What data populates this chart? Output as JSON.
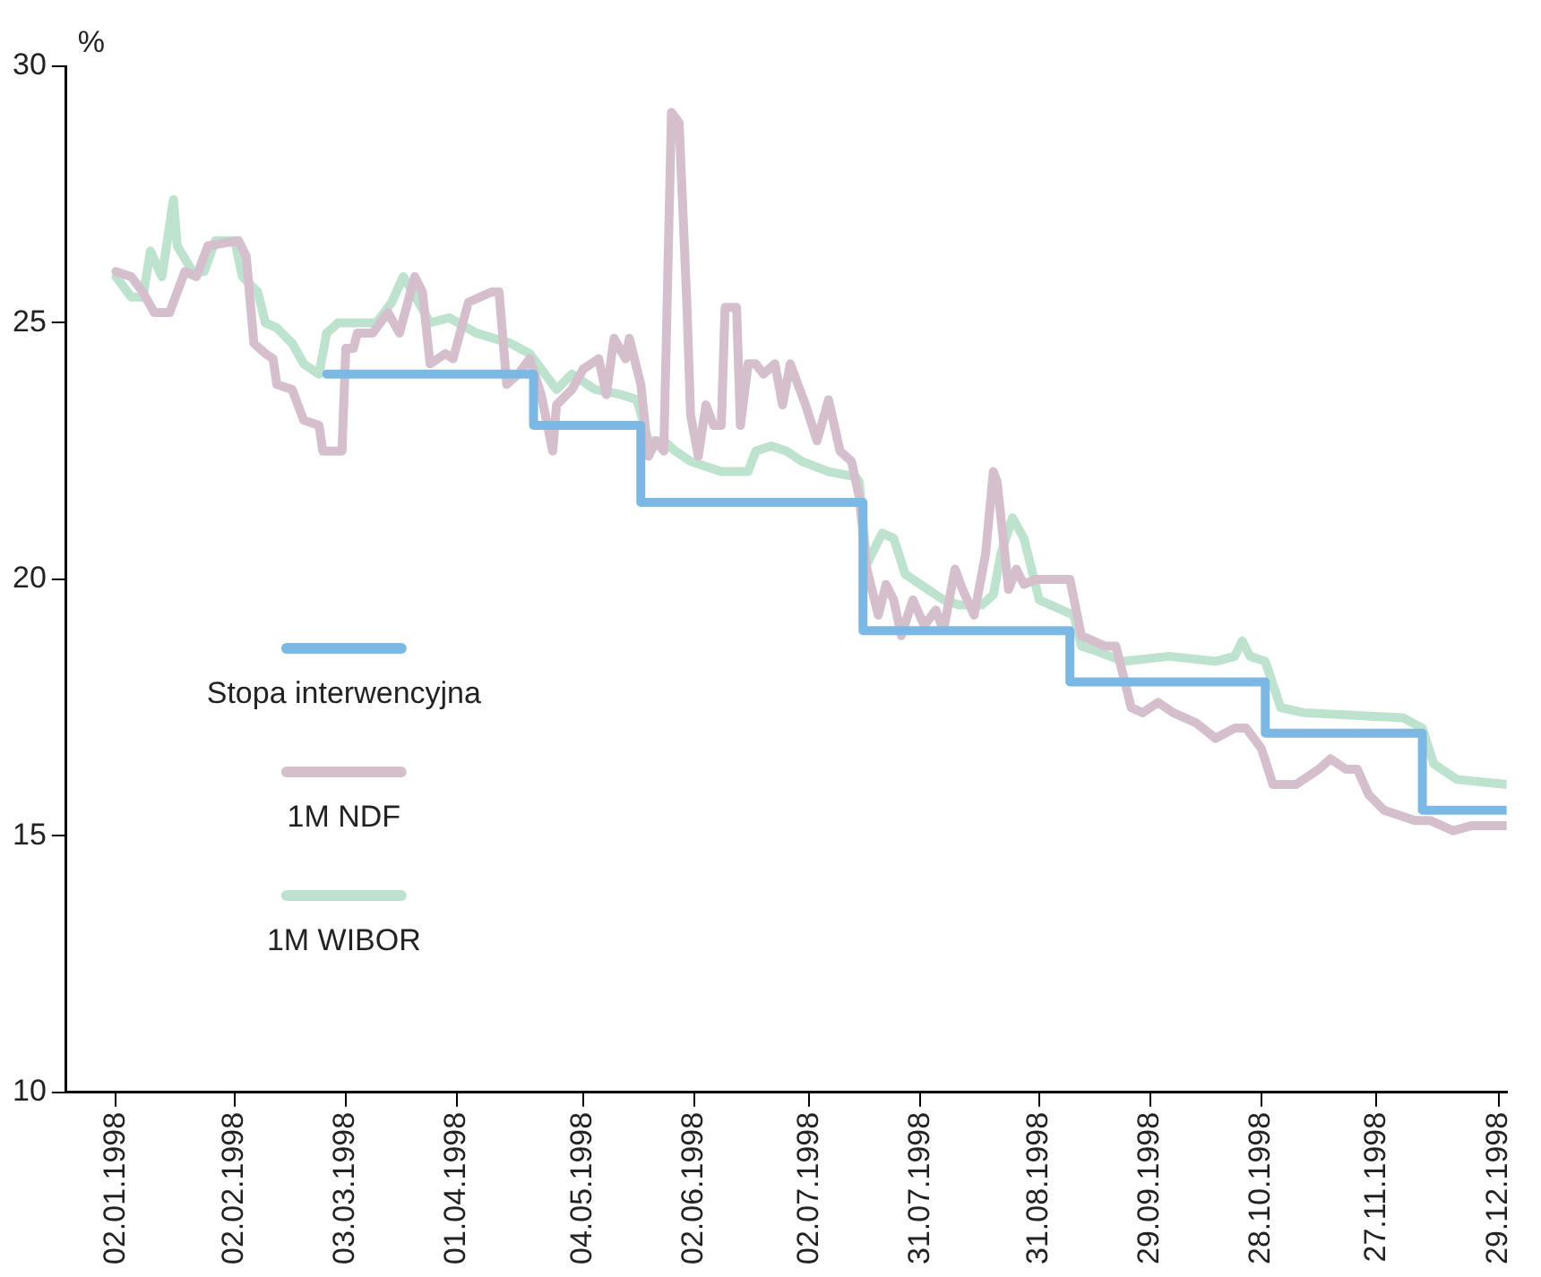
{
  "chart_data": {
    "type": "line",
    "ylabel": "%",
    "xlim": [
      "1997-12-20",
      "1998-12-31"
    ],
    "ylim": [
      10,
      30
    ],
    "yticks": [
      10,
      15,
      20,
      25,
      30
    ],
    "xticks": [
      {
        "value": "1998-01-02",
        "label": "02.01.1998"
      },
      {
        "value": "1998-02-02",
        "label": "02.02.1998"
      },
      {
        "value": "1998-03-03",
        "label": "03.03.1998"
      },
      {
        "value": "1998-04-01",
        "label": "01.04.1998"
      },
      {
        "value": "1998-05-04",
        "label": "04.05.1998"
      },
      {
        "value": "1998-06-02",
        "label": "02.06.1998"
      },
      {
        "value": "1998-07-02",
        "label": "02.07.1998"
      },
      {
        "value": "1998-07-31",
        "label": "31.07.1998"
      },
      {
        "value": "1998-08-31",
        "label": "31.08.1998"
      },
      {
        "value": "1998-09-29",
        "label": "29.09.1998"
      },
      {
        "value": "1998-10-28",
        "label": "28.10.1998"
      },
      {
        "value": "1998-11-27",
        "label": "27.11.1998"
      },
      {
        "value": "1998-12-29",
        "label": "29.12.1998"
      }
    ],
    "grid": false,
    "legend": "left",
    "marker": "none",
    "line_style": "solid",
    "series": [
      {
        "name": "Stopa interwencyjna",
        "type": "step",
        "color": "#7cb8e4",
        "x": [
          "1998-02-26",
          "1998-04-21",
          "1998-05-19",
          "1998-07-16",
          "1998-09-08",
          "1998-10-29",
          "1998-12-09",
          "1998-12-31"
        ],
        "values": [
          24,
          23,
          21.5,
          19,
          18,
          17,
          15.5,
          15.5
        ]
      },
      {
        "name": "1M NDF",
        "color": "#d5bfcc",
        "x": [
          "1998-01-02",
          "1998-01-06",
          "1998-01-09",
          "1998-01-12",
          "1998-01-16",
          "1998-01-20",
          "1998-01-23",
          "1998-01-26",
          "1998-02-03",
          "1998-02-05",
          "1998-02-07",
          "1998-02-10",
          "1998-02-12",
          "1998-02-13",
          "1998-02-17",
          "1998-02-20",
          "1998-02-24",
          "1998-02-25",
          "1998-03-02",
          "1998-03-03",
          "1998-03-05",
          "1998-03-06",
          "1998-03-10",
          "1998-03-14",
          "1998-03-17",
          "1998-03-21",
          "1998-03-23",
          "1998-03-25",
          "1998-03-29",
          "1998-03-31",
          "1998-04-04",
          "1998-04-10",
          "1998-04-12",
          "1998-04-14",
          "1998-04-17",
          "1998-04-20",
          "1998-04-23",
          "1998-04-26",
          "1998-04-27",
          "1998-05-01",
          "1998-05-04",
          "1998-05-08",
          "1998-05-10",
          "1998-05-12",
          "1998-05-15",
          "1998-05-16",
          "1998-05-19",
          "1998-05-21",
          "1998-05-23",
          "1998-05-25",
          "1998-05-27",
          "1998-05-29",
          "1998-05-31",
          "1998-06-01",
          "1998-06-03",
          "1998-06-05",
          "1998-06-07",
          "1998-06-09",
          "1998-06-10",
          "1998-06-13",
          "1998-06-14",
          "1998-06-16",
          "1998-06-18",
          "1998-06-20",
          "1998-06-23",
          "1998-06-25",
          "1998-06-27",
          "1998-07-01",
          "1998-07-04",
          "1998-07-07",
          "1998-07-10",
          "1998-07-13",
          "1998-07-15",
          "1998-07-17",
          "1998-07-20",
          "1998-07-22",
          "1998-07-24",
          "1998-07-26",
          "1998-07-29",
          "1998-08-01",
          "1998-08-04",
          "1998-08-06",
          "1998-08-09",
          "1998-08-11",
          "1998-08-14",
          "1998-08-17",
          "1998-08-19",
          "1998-08-20",
          "1998-08-23",
          "1998-08-25",
          "1998-08-27",
          "1998-08-30",
          "1998-09-08",
          "1998-09-11",
          "1998-09-14",
          "1998-09-17",
          "1998-09-20",
          "1998-09-24",
          "1998-09-27",
          "1998-10-01",
          "1998-10-05",
          "1998-10-11",
          "1998-10-16",
          "1998-10-21",
          "1998-10-24",
          "1998-10-28",
          "1998-10-31",
          "1998-11-06",
          "1998-11-12",
          "1998-11-15",
          "1998-11-19",
          "1998-11-22",
          "1998-11-25",
          "1998-11-29",
          "1998-12-07",
          "1998-12-11",
          "1998-12-17",
          "1998-12-22",
          "1998-12-31"
        ],
        "values": [
          26.0,
          25.9,
          25.6,
          25.2,
          25.2,
          26.0,
          25.9,
          26.5,
          26.6,
          26.3,
          24.6,
          24.4,
          24.3,
          23.8,
          23.7,
          23.1,
          23.0,
          22.5,
          22.5,
          24.5,
          24.5,
          24.8,
          24.8,
          25.2,
          24.8,
          25.9,
          25.6,
          24.2,
          24.4,
          24.3,
          25.4,
          25.6,
          25.6,
          23.8,
          24.0,
          24.3,
          23.6,
          22.5,
          23.4,
          23.7,
          24.1,
          24.3,
          23.6,
          24.7,
          24.3,
          24.7,
          23.8,
          22.4,
          22.7,
          22.5,
          29.1,
          28.9,
          25.4,
          23.2,
          22.4,
          23.4,
          23.0,
          23.0,
          25.3,
          25.3,
          23.0,
          24.2,
          24.2,
          24.0,
          24.2,
          23.4,
          24.2,
          23.4,
          22.7,
          23.5,
          22.5,
          22.3,
          21.6,
          20.2,
          19.3,
          19.9,
          19.6,
          18.9,
          19.6,
          19.1,
          19.4,
          19.0,
          20.2,
          19.8,
          19.3,
          20.5,
          22.1,
          21.9,
          19.8,
          20.2,
          19.9,
          20.0,
          20.0,
          18.9,
          18.8,
          18.7,
          18.7,
          17.5,
          17.4,
          17.6,
          17.4,
          17.2,
          16.9,
          17.1,
          17.1,
          16.7,
          16.0,
          16.0,
          16.3,
          16.5,
          16.3,
          16.3,
          15.8,
          15.5,
          15.3,
          15.3,
          15.1,
          15.2,
          15.2
        ]
      },
      {
        "name": "1M WIBOR",
        "color": "#bde3cf",
        "x": [
          "1998-01-02",
          "1998-01-06",
          "1998-01-09",
          "1998-01-11",
          "1998-01-14",
          "1998-01-17",
          "1998-01-18",
          "1998-01-22",
          "1998-01-25",
          "1998-01-28",
          "1998-02-02",
          "1998-02-04",
          "1998-02-08",
          "1998-02-10",
          "1998-02-13",
          "1998-02-17",
          "1998-02-20",
          "1998-02-24",
          "1998-02-26",
          "1998-03-01",
          "1998-03-11",
          "1998-03-15",
          "1998-03-18",
          "1998-03-22",
          "1998-03-25",
          "1998-03-30",
          "1998-04-06",
          "1998-04-15",
          "1998-04-20",
          "1998-04-24",
          "1998-04-27",
          "1998-05-01",
          "1998-05-07",
          "1998-05-14",
          "1998-05-18",
          "1998-05-21",
          "1998-05-25",
          "1998-05-28",
          "1998-06-01",
          "1998-06-09",
          "1998-06-16",
          "1998-06-18",
          "1998-06-22",
          "1998-06-26",
          "1998-06-30",
          "1998-07-07",
          "1998-07-14",
          "1998-07-15",
          "1998-07-17",
          "1998-07-21",
          "1998-07-24",
          "1998-07-27",
          "1998-08-02",
          "1998-08-06",
          "1998-08-10",
          "1998-08-16",
          "1998-08-19",
          "1998-08-21",
          "1998-08-24",
          "1998-08-27",
          "1998-08-31",
          "1998-09-06",
          "1998-09-09",
          "1998-09-11",
          "1998-09-15",
          "1998-09-22",
          "1998-10-04",
          "1998-10-16",
          "1998-10-21",
          "1998-10-23",
          "1998-10-25",
          "1998-10-29",
          "1998-11-02",
          "1998-11-08",
          "1998-12-04",
          "1998-12-09",
          "1998-12-12",
          "1998-12-18",
          "1998-12-31"
        ],
        "values": [
          25.9,
          25.5,
          25.5,
          26.4,
          25.9,
          27.4,
          26.5,
          26.0,
          26.0,
          26.6,
          26.6,
          25.9,
          25.6,
          25.0,
          24.9,
          24.6,
          24.2,
          24.0,
          24.8,
          25.0,
          25.0,
          25.4,
          25.9,
          25.4,
          25.0,
          25.1,
          24.8,
          24.6,
          24.4,
          24.0,
          23.7,
          24.0,
          23.7,
          23.6,
          23.5,
          22.7,
          22.7,
          22.5,
          22.3,
          22.1,
          22.1,
          22.5,
          22.6,
          22.5,
          22.3,
          22.1,
          22.0,
          21.9,
          20.3,
          20.9,
          20.8,
          20.1,
          19.8,
          19.6,
          19.5,
          19.5,
          19.7,
          20.5,
          21.2,
          20.8,
          19.6,
          19.4,
          19.3,
          18.7,
          18.6,
          18.4,
          18.5,
          18.4,
          18.5,
          18.8,
          18.5,
          18.4,
          17.5,
          17.4,
          17.3,
          17.1,
          16.4,
          16.1,
          16.0
        ]
      }
    ]
  }
}
